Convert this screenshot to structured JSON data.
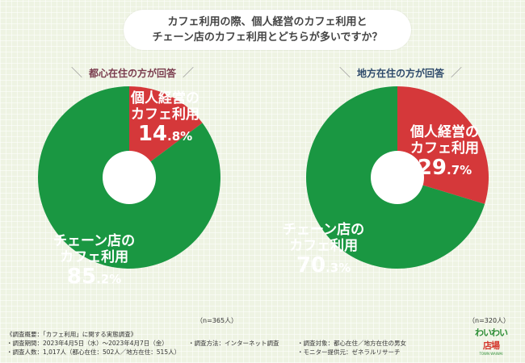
{
  "question": {
    "line1": "カフェ利用の際、個人経営のカフェ利用と",
    "line2": "チェーン店のカフェ利用とどちらが多いですか？"
  },
  "colors": {
    "independent": "#d5383a",
    "chain": "#1a9742",
    "hole": "#ffffff"
  },
  "chart_data": [
    {
      "type": "pie",
      "title": "都心在住の方が回答",
      "n_label": "（n=365人）",
      "slices": [
        {
          "label_line1": "個人経営の",
          "label_line2": "カフェ利用",
          "value": 14.8,
          "value_int": "14",
          "value_dec": ".8%"
        },
        {
          "label_line1": "チェーン店の",
          "label_line2": "カフェ利用",
          "value": 85.2,
          "value_int": "85",
          "value_dec": ".2%"
        }
      ]
    },
    {
      "type": "pie",
      "title": "地方在住の方が回答",
      "n_label": "（n=320人）",
      "slices": [
        {
          "label_line1": "個人経営の",
          "label_line2": "カフェ利用",
          "value": 29.7,
          "value_int": "29",
          "value_dec": ".7%"
        },
        {
          "label_line1": "チェーン店の",
          "label_line2": "カフェ利用",
          "value": 70.3,
          "value_int": "70",
          "value_dec": ".3%"
        }
      ]
    }
  ],
  "footer": {
    "title": "《調査概要：「カフェ利用」に関する実態調査》",
    "period": "・調査期間：2023年4月5日（水）～2023年4月7日（金）",
    "method": "・調査方法：インターネット調査",
    "target": "・調査対象：都心在住／地方在住の男女",
    "count": "・調査人数：1,017人（都心在住：502人／地方在住：515人）",
    "provider": "・モニター提供元：ゼネラルリサーチ"
  },
  "logo": {
    "line1": "わいわい",
    "line2": "店場",
    "line3": "TOWN WAIWAI"
  }
}
